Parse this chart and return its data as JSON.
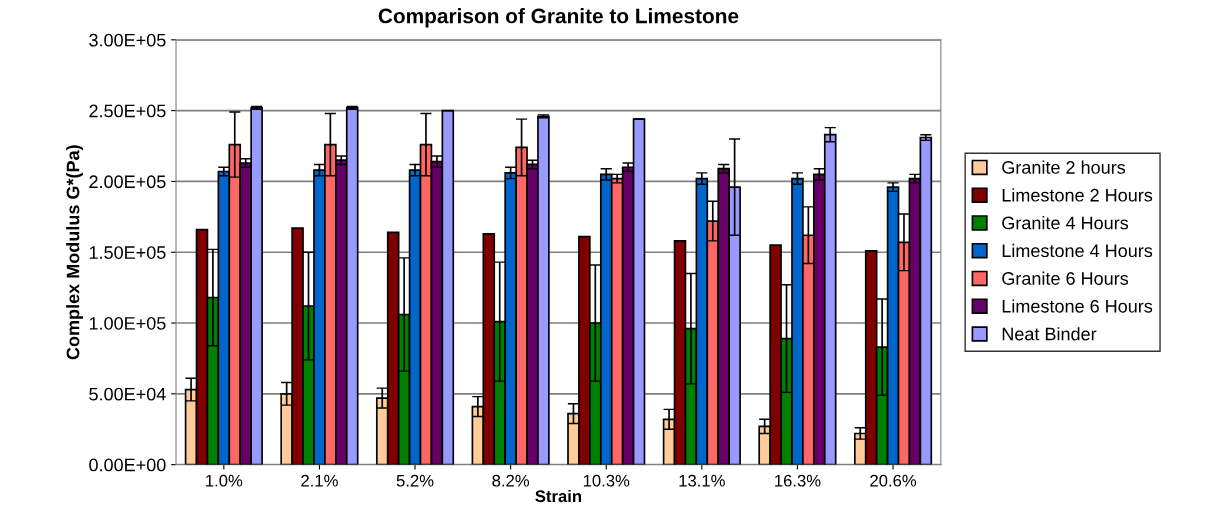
{
  "chart_data": {
    "type": "bar",
    "title": "Comparison of Granite to Limestone",
    "xlabel": "Strain",
    "ylabel": "Complex Modulus G*(Pa)",
    "categories": [
      "1.0%",
      "2.1%",
      "5.2%",
      "8.2%",
      "10.3%",
      "13.1%",
      "16.3%",
      "20.6%"
    ],
    "series": [
      {
        "name": "Granite 2 hours",
        "color": "#ffcc99",
        "values": [
          53000,
          50000,
          47000,
          41000,
          36000,
          32000,
          27000,
          22000
        ],
        "errors": [
          8000,
          8000,
          7000,
          7000,
          7000,
          7000,
          5000,
          4000
        ]
      },
      {
        "name": "Limestone 2 Hours",
        "color": "#800000",
        "values": [
          166000,
          167000,
          164000,
          163000,
          161000,
          158000,
          155000,
          151000
        ]
      },
      {
        "name": "Granite 4 Hours",
        "color": "#008000",
        "values": [
          118000,
          112000,
          106000,
          101000,
          100000,
          96000,
          89000,
          83000
        ],
        "errors": [
          34000,
          38000,
          40000,
          42000,
          41000,
          39000,
          38000,
          34000
        ]
      },
      {
        "name": "Limestone 4 Hours",
        "color": "#0066cc",
        "values": [
          207000,
          208000,
          208000,
          206000,
          205000,
          202000,
          202000,
          196000
        ],
        "errors": [
          3000,
          4000,
          4000,
          4000,
          4000,
          4000,
          4000,
          3000
        ]
      },
      {
        "name": "Granite 6 Hours",
        "color": "#ff6666",
        "values": [
          226000,
          226000,
          226000,
          224000,
          202000,
          172000,
          162000,
          157000
        ],
        "errors": [
          23000,
          22000,
          22000,
          20000,
          3000,
          14000,
          20000,
          20000
        ]
      },
      {
        "name": "Limestone 6 Hours",
        "color": "#660066",
        "values": [
          213000,
          215000,
          214000,
          212000,
          210000,
          209000,
          205000,
          202000
        ],
        "errors": [
          3000,
          3000,
          4000,
          3000,
          3000,
          3000,
          4000,
          3000
        ]
      },
      {
        "name": "Neat Binder",
        "color": "#9999ff",
        "values": [
          252000,
          252000,
          250000,
          246000,
          244000,
          196000,
          233000,
          231000
        ],
        "errors": [
          1000,
          1000,
          0,
          1000,
          0,
          34000,
          5000,
          2000
        ]
      }
    ],
    "ylim": [
      0,
      300000
    ],
    "yticks": [
      {
        "value": 0,
        "label": "0.00E+00"
      },
      {
        "value": 50000,
        "label": "5.00E+04"
      },
      {
        "value": 100000,
        "label": "1.00E+05"
      },
      {
        "value": 150000,
        "label": "1.50E+05"
      },
      {
        "value": 200000,
        "label": "2.00E+05"
      },
      {
        "value": 250000,
        "label": "2.50E+05"
      },
      {
        "value": 300000,
        "label": "3.00E+05"
      }
    ],
    "grid": "y",
    "legend": "right"
  }
}
